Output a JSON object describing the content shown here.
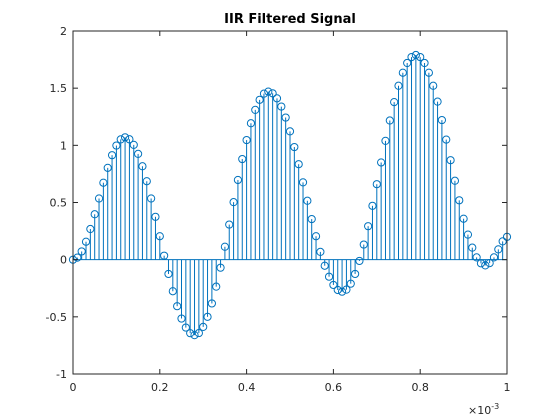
{
  "chart_data": {
    "type": "stem",
    "title": "IIR Filtered Signal",
    "x_multiplier": {
      "base": "×10",
      "exponent": "-3"
    },
    "x": [
      0,
      0.01,
      0.02,
      0.03,
      0.04,
      0.05,
      0.06,
      0.07,
      0.08,
      0.09,
      0.1,
      0.11,
      0.12,
      0.13,
      0.14,
      0.15,
      0.16,
      0.17,
      0.18,
      0.19,
      0.2,
      0.21,
      0.22,
      0.23,
      0.24,
      0.25,
      0.26,
      0.27,
      0.28,
      0.29,
      0.3,
      0.31,
      0.32,
      0.33,
      0.34,
      0.35,
      0.36,
      0.37,
      0.38,
      0.39,
      0.4,
      0.41,
      0.42,
      0.43,
      0.44,
      0.45,
      0.46,
      0.47,
      0.48,
      0.49,
      0.5,
      0.51,
      0.52,
      0.53,
      0.54,
      0.55,
      0.56,
      0.57,
      0.58,
      0.59,
      0.6,
      0.61,
      0.62,
      0.63,
      0.64,
      0.65,
      0.66,
      0.67,
      0.68,
      0.69,
      0.7,
      0.71,
      0.72,
      0.73,
      0.74,
      0.75,
      0.76,
      0.77,
      0.78,
      0.79,
      0.8,
      0.81,
      0.82,
      0.83,
      0.84,
      0.85,
      0.86,
      0.87,
      0.88,
      0.89,
      0.9,
      0.91,
      0.92,
      0.93,
      0.94,
      0.95,
      0.96,
      0.97,
      0.98,
      0.99,
      1
    ],
    "series": [
      {
        "color": "#0072bd",
        "values": [
          0,
          0.018,
          0.072,
          0.157,
          0.268,
          0.397,
          0.535,
          0.673,
          0.803,
          0.914,
          0.998,
          1.052,
          1.07,
          1.053,
          1.004,
          0.925,
          0.817,
          0.686,
          0.535,
          0.375,
          0.205,
          0.035,
          -0.125,
          -0.276,
          -0.407,
          -0.515,
          -0.594,
          -0.643,
          -0.66,
          -0.642,
          -0.588,
          -0.5,
          -0.383,
          -0.236,
          -0.07,
          0.113,
          0.307,
          0.503,
          0.697,
          0.88,
          1.046,
          1.193,
          1.31,
          1.398,
          1.452,
          1.47,
          1.455,
          1.411,
          1.339,
          1.243,
          1.122,
          0.985,
          0.835,
          0.676,
          0.515,
          0.355,
          0.205,
          0.068,
          -0.053,
          -0.149,
          -0.221,
          -0.265,
          -0.28,
          -0.262,
          -0.21,
          -0.125,
          -0.011,
          0.132,
          0.293,
          0.471,
          0.66,
          0.85,
          1.039,
          1.217,
          1.378,
          1.521,
          1.635,
          1.72,
          1.772,
          1.79,
          1.772,
          1.72,
          1.635,
          1.521,
          1.382,
          1.221,
          1.05,
          0.87,
          0.69,
          0.519,
          0.358,
          0.219,
          0.105,
          0.02,
          -0.032,
          -0.05,
          -0.03,
          0.02,
          0.09,
          0.16,
          0.2
        ]
      }
    ],
    "xlim": [
      0,
      1
    ],
    "xticks": [
      0,
      0.2,
      0.4,
      0.6,
      0.8,
      1
    ],
    "ylim": [
      -1,
      2
    ],
    "yticks": [
      -1,
      -0.5,
      0,
      0.5,
      1,
      1.5,
      2
    ],
    "grid": false
  }
}
